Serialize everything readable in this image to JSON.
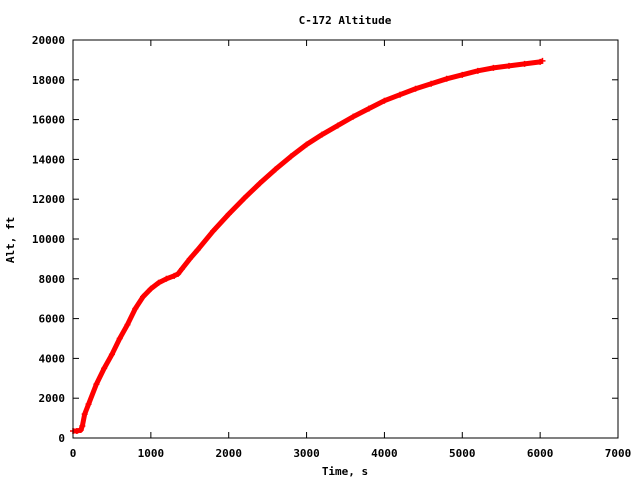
{
  "chart_data": {
    "type": "scatter",
    "title": "C-172 Altitude",
    "xlabel": "Time, s",
    "ylabel": "Alt, ft",
    "xlim": [
      0,
      7000
    ],
    "ylim": [
      0,
      20000
    ],
    "xticks": [
      0,
      1000,
      2000,
      3000,
      4000,
      5000,
      6000,
      7000
    ],
    "yticks": [
      0,
      2000,
      4000,
      6000,
      8000,
      10000,
      12000,
      14000,
      16000,
      18000,
      20000
    ],
    "grid": false,
    "marker": "+",
    "colors": {
      "series": "#ff0000",
      "axes": "#000000",
      "background": "#ffffff"
    },
    "series": [
      {
        "x": [
          0,
          50,
          100,
          120,
          150,
          200,
          300,
          400,
          500,
          600,
          700,
          800,
          900,
          1000,
          1100,
          1200,
          1300,
          1350,
          1400,
          1500,
          1600,
          1800,
          2000,
          2200,
          2400,
          2600,
          2800,
          3000,
          3200,
          3400,
          3600,
          3800,
          4000,
          4200,
          4400,
          4600,
          4800,
          5000,
          5200,
          5400,
          5600,
          5800,
          6000,
          6030
        ],
        "y": [
          350,
          350,
          400,
          600,
          1200,
          1700,
          2700,
          3500,
          4200,
          5000,
          5700,
          6500,
          7100,
          7500,
          7800,
          8000,
          8150,
          8250,
          8500,
          9000,
          9450,
          10400,
          11250,
          12050,
          12800,
          13500,
          14150,
          14750,
          15250,
          15700,
          16150,
          16550,
          16950,
          17250,
          17550,
          17800,
          18050,
          18250,
          18450,
          18600,
          18700,
          18800,
          18900,
          18950
        ]
      }
    ]
  }
}
